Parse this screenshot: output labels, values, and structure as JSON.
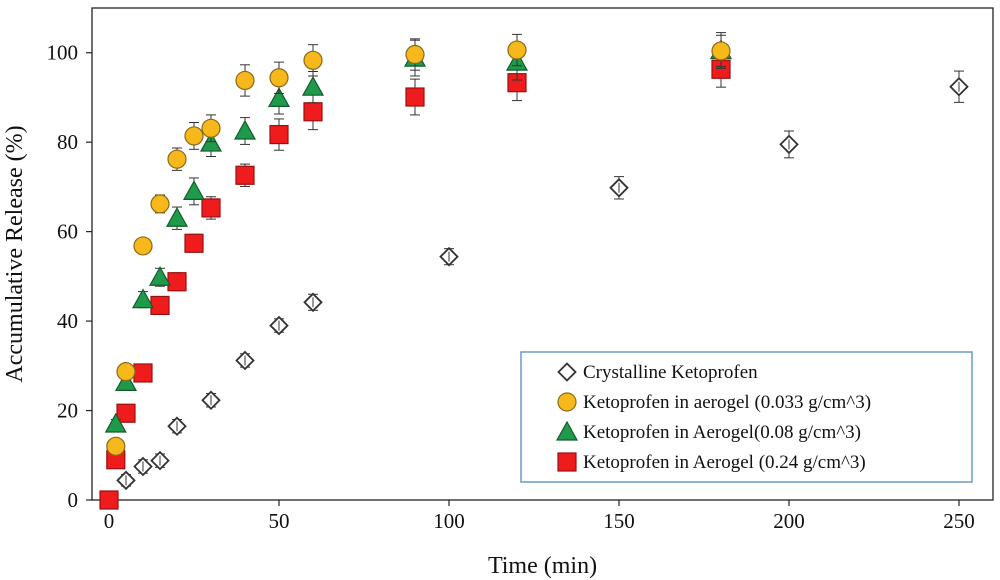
{
  "chart_data": {
    "type": "scatter",
    "xlabel": "Time (min)",
    "ylabel": "Accumulative Release (%)",
    "xlim": [
      -5,
      260
    ],
    "ylim": [
      0,
      110
    ],
    "xticks": [
      0,
      50,
      100,
      150,
      200,
      250
    ],
    "yticks": [
      0,
      20,
      40,
      60,
      80,
      100
    ],
    "grid": false,
    "legend_position": "bottom-right",
    "series": [
      {
        "name": "Crystalline Ketoprofen",
        "marker": "diamond",
        "color": "#ffffff",
        "edge": "#333333",
        "points": [
          {
            "x": 0,
            "y": 0,
            "err": 0
          },
          {
            "x": 5,
            "y": 4.4,
            "err": 1.3
          },
          {
            "x": 10,
            "y": 7.5,
            "err": 1.5
          },
          {
            "x": 15,
            "y": 8.8,
            "err": 1.5
          },
          {
            "x": 20,
            "y": 16.5,
            "err": 1.5
          },
          {
            "x": 30,
            "y": 22.3,
            "err": 1.5
          },
          {
            "x": 40,
            "y": 31.2,
            "err": 1.5
          },
          {
            "x": 50,
            "y": 39.0,
            "err": 1.5
          },
          {
            "x": 60,
            "y": 44.2,
            "err": 1.8
          },
          {
            "x": 100,
            "y": 54.4,
            "err": 1.8
          },
          {
            "x": 150,
            "y": 69.8,
            "err": 2.5
          },
          {
            "x": 200,
            "y": 79.5,
            "err": 3.0
          },
          {
            "x": 250,
            "y": 92.4,
            "err": 3.5
          }
        ]
      },
      {
        "name": "Ketoprofen in aerogel (0.033 g/cm^3)",
        "marker": "circle",
        "color": "#f6b81a",
        "edge": "#8a6a1a",
        "points": [
          {
            "x": 2,
            "y": 12.0,
            "err": 1.0
          },
          {
            "x": 5,
            "y": 28.7,
            "err": 1.5
          },
          {
            "x": 10,
            "y": 56.8,
            "err": 1.5
          },
          {
            "x": 15,
            "y": 66.2,
            "err": 2.0
          },
          {
            "x": 20,
            "y": 76.2,
            "err": 2.5
          },
          {
            "x": 25,
            "y": 81.4,
            "err": 3.0
          },
          {
            "x": 30,
            "y": 83.1,
            "err": 3.0
          },
          {
            "x": 40,
            "y": 93.8,
            "err": 3.5
          },
          {
            "x": 50,
            "y": 94.4,
            "err": 3.5
          },
          {
            "x": 60,
            "y": 98.3,
            "err": 3.5
          },
          {
            "x": 90,
            "y": 99.6,
            "err": 3.5
          },
          {
            "x": 120,
            "y": 100.6,
            "err": 3.5
          },
          {
            "x": 180,
            "y": 100.4,
            "err": 3.5
          }
        ]
      },
      {
        "name": "Ketoprofen in Aerogel(0.08 g/cm^3)",
        "marker": "triangle",
        "color": "#1f9a4a",
        "edge": "#145a2c",
        "points": [
          {
            "x": 2,
            "y": 17.0,
            "err": 1.0
          },
          {
            "x": 5,
            "y": 26.3,
            "err": 1.5
          },
          {
            "x": 10,
            "y": 44.8,
            "err": 1.8
          },
          {
            "x": 15,
            "y": 49.8,
            "err": 2.0
          },
          {
            "x": 20,
            "y": 63.0,
            "err": 2.5
          },
          {
            "x": 25,
            "y": 69.0,
            "err": 3.0
          },
          {
            "x": 30,
            "y": 79.8,
            "err": 3.0
          },
          {
            "x": 40,
            "y": 82.5,
            "err": 3.0
          },
          {
            "x": 50,
            "y": 89.8,
            "err": 3.5
          },
          {
            "x": 60,
            "y": 92.3,
            "err": 3.5
          },
          {
            "x": 90,
            "y": 98.8,
            "err": 4.0
          },
          {
            "x": 120,
            "y": 97.9,
            "err": 4.0
          },
          {
            "x": 180,
            "y": 100.5,
            "err": 4.0
          }
        ]
      },
      {
        "name": "Ketoprofen in Aerogel (0.24 g/cm^3)",
        "marker": "square",
        "color": "#ee1c1c",
        "edge": "#9a1010",
        "points": [
          {
            "x": 0,
            "y": 0,
            "err": 0
          },
          {
            "x": 2,
            "y": 9.0,
            "err": 1.0
          },
          {
            "x": 5,
            "y": 19.4,
            "err": 1.5
          },
          {
            "x": 10,
            "y": 28.4,
            "err": 1.5
          },
          {
            "x": 15,
            "y": 43.5,
            "err": 1.8
          },
          {
            "x": 20,
            "y": 48.8,
            "err": 2.0
          },
          {
            "x": 25,
            "y": 57.4,
            "err": 2.0
          },
          {
            "x": 30,
            "y": 65.3,
            "err": 2.5
          },
          {
            "x": 40,
            "y": 72.6,
            "err": 2.5
          },
          {
            "x": 50,
            "y": 81.7,
            "err": 3.5
          },
          {
            "x": 60,
            "y": 86.8,
            "err": 4.0
          },
          {
            "x": 90,
            "y": 90.1,
            "err": 4.0
          },
          {
            "x": 120,
            "y": 93.3,
            "err": 4.0
          },
          {
            "x": 180,
            "y": 96.3,
            "err": 4.0
          }
        ]
      }
    ]
  }
}
